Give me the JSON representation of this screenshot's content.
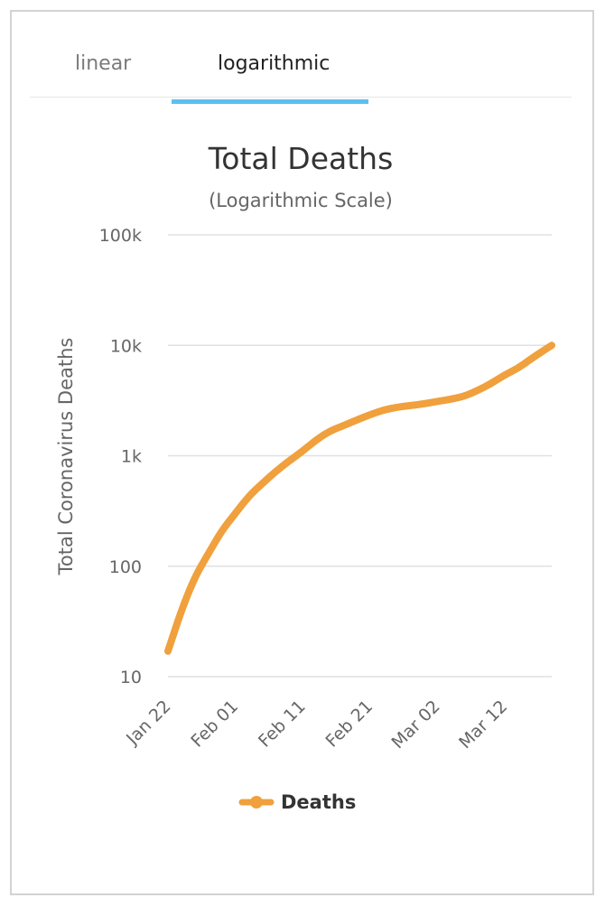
{
  "tabs": [
    {
      "label": "linear",
      "active": false
    },
    {
      "label": "logarithmic",
      "active": true
    }
  ],
  "colors": {
    "series": "#f0a03c",
    "tab_indicator": "#5bc0f0",
    "grid": "#e0e0e0"
  },
  "chart_data": {
    "type": "line",
    "title": "Total Deaths",
    "subtitle": "(Logarithmic Scale)",
    "ylabel": "Total Coronavirus Deaths",
    "xlabel": "",
    "yscale": "log",
    "ylim": [
      10,
      100000
    ],
    "y_ticks": [
      {
        "value": 10,
        "label": "10"
      },
      {
        "value": 100,
        "label": "100"
      },
      {
        "value": 1000,
        "label": "1k"
      },
      {
        "value": 10000,
        "label": "10k"
      },
      {
        "value": 100000,
        "label": "100k"
      }
    ],
    "x_ticks": [
      "Jan 22",
      "Feb 01",
      "Feb 11",
      "Feb 21",
      "Mar 02",
      "Mar 12"
    ],
    "xlim": [
      "2020-01-22",
      "2020-03-19"
    ],
    "grid": true,
    "legend": "bottom-center",
    "series": [
      {
        "name": "Deaths",
        "x": [
          "2020-01-22",
          "2020-01-24",
          "2020-01-26",
          "2020-01-28",
          "2020-01-30",
          "2020-02-01",
          "2020-02-03",
          "2020-02-05",
          "2020-02-07",
          "2020-02-09",
          "2020-02-11",
          "2020-02-13",
          "2020-02-15",
          "2020-02-17",
          "2020-02-19",
          "2020-02-21",
          "2020-02-23",
          "2020-02-25",
          "2020-02-27",
          "2020-02-29",
          "2020-03-02",
          "2020-03-04",
          "2020-03-06",
          "2020-03-08",
          "2020-03-10",
          "2020-03-12",
          "2020-03-14",
          "2020-03-16",
          "2020-03-19"
        ],
        "values": [
          17,
          40,
          80,
          130,
          210,
          300,
          430,
          560,
          720,
          900,
          1100,
          1390,
          1670,
          1870,
          2100,
          2350,
          2600,
          2750,
          2850,
          2950,
          3100,
          3250,
          3450,
          3900,
          4500,
          5400,
          6200,
          7600,
          10000
        ]
      }
    ]
  }
}
